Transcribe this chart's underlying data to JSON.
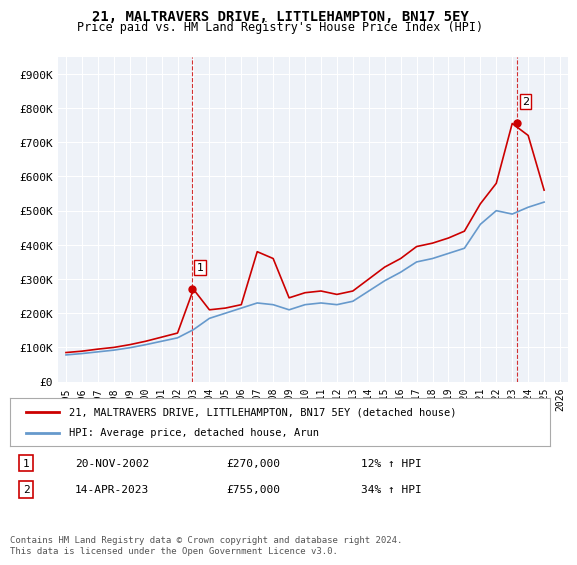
{
  "title": "21, MALTRAVERS DRIVE, LITTLEHAMPTON, BN17 5EY",
  "subtitle": "Price paid vs. HM Land Registry's House Price Index (HPI)",
  "legend_label_red": "21, MALTRAVERS DRIVE, LITTLEHAMPTON, BN17 5EY (detached house)",
  "legend_label_blue": "HPI: Average price, detached house, Arun",
  "annotation1_label": "1",
  "annotation1_date": "20-NOV-2002",
  "annotation1_price": "£270,000",
  "annotation1_hpi": "12% ↑ HPI",
  "annotation2_label": "2",
  "annotation2_date": "14-APR-2023",
  "annotation2_price": "£755,000",
  "annotation2_hpi": "34% ↑ HPI",
  "footnote": "Contains HM Land Registry data © Crown copyright and database right 2024.\nThis data is licensed under the Open Government Licence v3.0.",
  "red_color": "#cc0000",
  "blue_color": "#6699cc",
  "bg_color": "#ffffff",
  "plot_bg_color": "#eef2f8",
  "grid_color": "#ffffff",
  "ylim": [
    0,
    950000
  ],
  "yticks": [
    0,
    100000,
    200000,
    300000,
    400000,
    500000,
    600000,
    700000,
    800000,
    900000
  ],
  "ytick_labels": [
    "£0",
    "£100K",
    "£200K",
    "£300K",
    "£400K",
    "£500K",
    "£600K",
    "£700K",
    "£800K",
    "£900K"
  ],
  "hpi_years": [
    1995,
    1996,
    1997,
    1998,
    1999,
    2000,
    2001,
    2002,
    2003,
    2004,
    2005,
    2006,
    2007,
    2008,
    2009,
    2010,
    2011,
    2012,
    2013,
    2014,
    2015,
    2016,
    2017,
    2018,
    2019,
    2020,
    2021,
    2022,
    2023,
    2024,
    2025
  ],
  "hpi_values": [
    78000,
    82000,
    87000,
    92000,
    99000,
    108000,
    118000,
    128000,
    152000,
    185000,
    200000,
    215000,
    230000,
    225000,
    210000,
    225000,
    230000,
    225000,
    235000,
    265000,
    295000,
    320000,
    350000,
    360000,
    375000,
    390000,
    460000,
    500000,
    490000,
    510000,
    525000
  ],
  "red_years": [
    1995,
    1996,
    1997,
    1998,
    1999,
    2000,
    2001,
    2002,
    2003,
    2004,
    2005,
    2006,
    2007,
    2008,
    2009,
    2010,
    2011,
    2012,
    2013,
    2014,
    2015,
    2016,
    2017,
    2018,
    2019,
    2020,
    2021,
    2022,
    2023,
    2024,
    2025
  ],
  "red_values": [
    85000,
    89000,
    95000,
    100000,
    108000,
    118000,
    130000,
    142000,
    270000,
    210000,
    215000,
    225000,
    380000,
    360000,
    245000,
    260000,
    265000,
    255000,
    265000,
    300000,
    335000,
    360000,
    395000,
    405000,
    420000,
    440000,
    520000,
    580000,
    755000,
    720000,
    560000
  ],
  "point1_x": 2002.9,
  "point1_y": 270000,
  "point2_x": 2023.3,
  "point2_y": 755000,
  "vline1_x": 2002.9,
  "vline2_x": 2023.3,
  "xticks": [
    1995,
    1996,
    1997,
    1998,
    1999,
    2000,
    2001,
    2002,
    2003,
    2004,
    2005,
    2006,
    2007,
    2008,
    2009,
    2010,
    2011,
    2012,
    2013,
    2014,
    2015,
    2016,
    2017,
    2018,
    2019,
    2020,
    2021,
    2022,
    2023,
    2024,
    2025,
    2026
  ]
}
